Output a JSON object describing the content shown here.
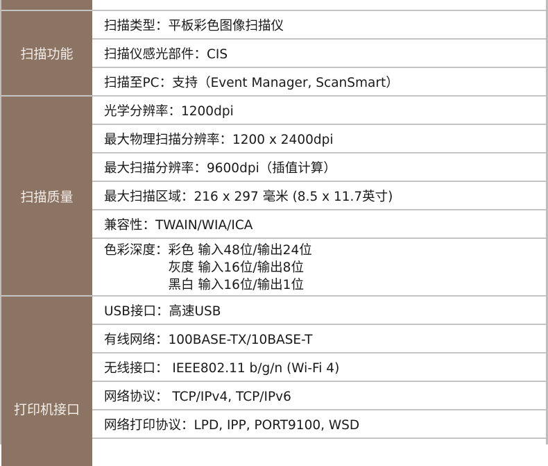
{
  "groups": [
    {
      "category": "扫描功能",
      "rows": [
        "扫描类型：平板彩色图像扫描仪",
        "扫描仪感光部件：CIS",
        "扫描至PC：支持（Event Manager, ScanSmart）"
      ]
    },
    {
      "category": "扫描质量",
      "rows": [
        "光学分辨率：1200dpi",
        "最大物理扫描分辨率：1200 x 2400dpi",
        "最大扫描分辨率：9600dpi（插值计算）",
        "最大扫描区域：216 x 297 毫米 (8.5 x 11.7英寸)",
        "兼容性：TWAIN/WIA/ICA"
      ],
      "color_depth": {
        "label": "色彩深度：",
        "lines": [
          "彩色 输入48位/输出24位",
          "灰度 输入16位/输出8位",
          "黑白 输入16位/输出1位"
        ]
      }
    },
    {
      "category": "打印机接口",
      "rows": [
        "USB接口：高速USB",
        "有线网络：100BASE-TX/10BASE-T",
        "无线接口： IEEE802.11 b/g/n (Wi-Fi 4)",
        "网络协议： TCP/IPv4, TCP/IPv6",
        "网络打印协议：LPD, IPP, PORT9100, WSD"
      ]
    }
  ]
}
